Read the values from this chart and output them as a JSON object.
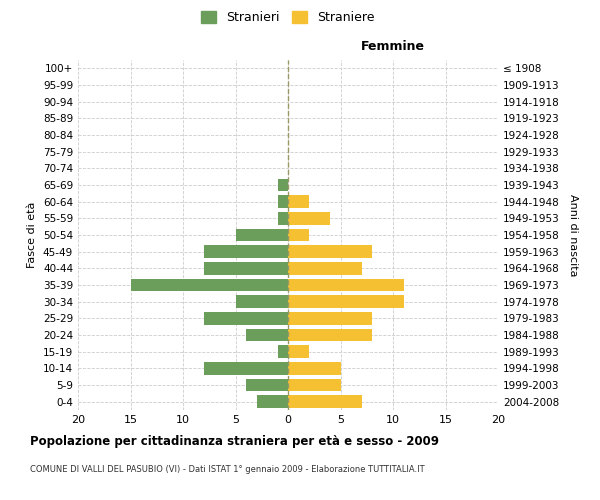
{
  "age_groups": [
    "0-4",
    "5-9",
    "10-14",
    "15-19",
    "20-24",
    "25-29",
    "30-34",
    "35-39",
    "40-44",
    "45-49",
    "50-54",
    "55-59",
    "60-64",
    "65-69",
    "70-74",
    "75-79",
    "80-84",
    "85-89",
    "90-94",
    "95-99",
    "100+"
  ],
  "birth_years": [
    "2004-2008",
    "1999-2003",
    "1994-1998",
    "1989-1993",
    "1984-1988",
    "1979-1983",
    "1974-1978",
    "1969-1973",
    "1964-1968",
    "1959-1963",
    "1954-1958",
    "1949-1953",
    "1944-1948",
    "1939-1943",
    "1934-1938",
    "1929-1933",
    "1924-1928",
    "1919-1923",
    "1914-1918",
    "1909-1913",
    "≤ 1908"
  ],
  "males": [
    3,
    4,
    8,
    1,
    4,
    8,
    5,
    15,
    8,
    8,
    5,
    1,
    1,
    1,
    0,
    0,
    0,
    0,
    0,
    0,
    0
  ],
  "females": [
    7,
    5,
    5,
    2,
    8,
    8,
    11,
    11,
    7,
    8,
    2,
    4,
    2,
    0,
    0,
    0,
    0,
    0,
    0,
    0,
    0
  ],
  "male_color": "#6a9e5a",
  "female_color": "#f5c031",
  "background_color": "#ffffff",
  "grid_color": "#cccccc",
  "title": "Popolazione per cittadinanza straniera per età e sesso - 2009",
  "subtitle": "COMUNE DI VALLI DEL PASUBIO (VI) - Dati ISTAT 1° gennaio 2009 - Elaborazione TUTTITALIA.IT",
  "xlabel_right": "Femmine",
  "ylabel_left": "Fasce di età",
  "ylabel_right": "Anni di nascita",
  "xlim": 20,
  "male_label": "Stranieri",
  "female_label": "Straniere",
  "center_line_color": "#999966"
}
